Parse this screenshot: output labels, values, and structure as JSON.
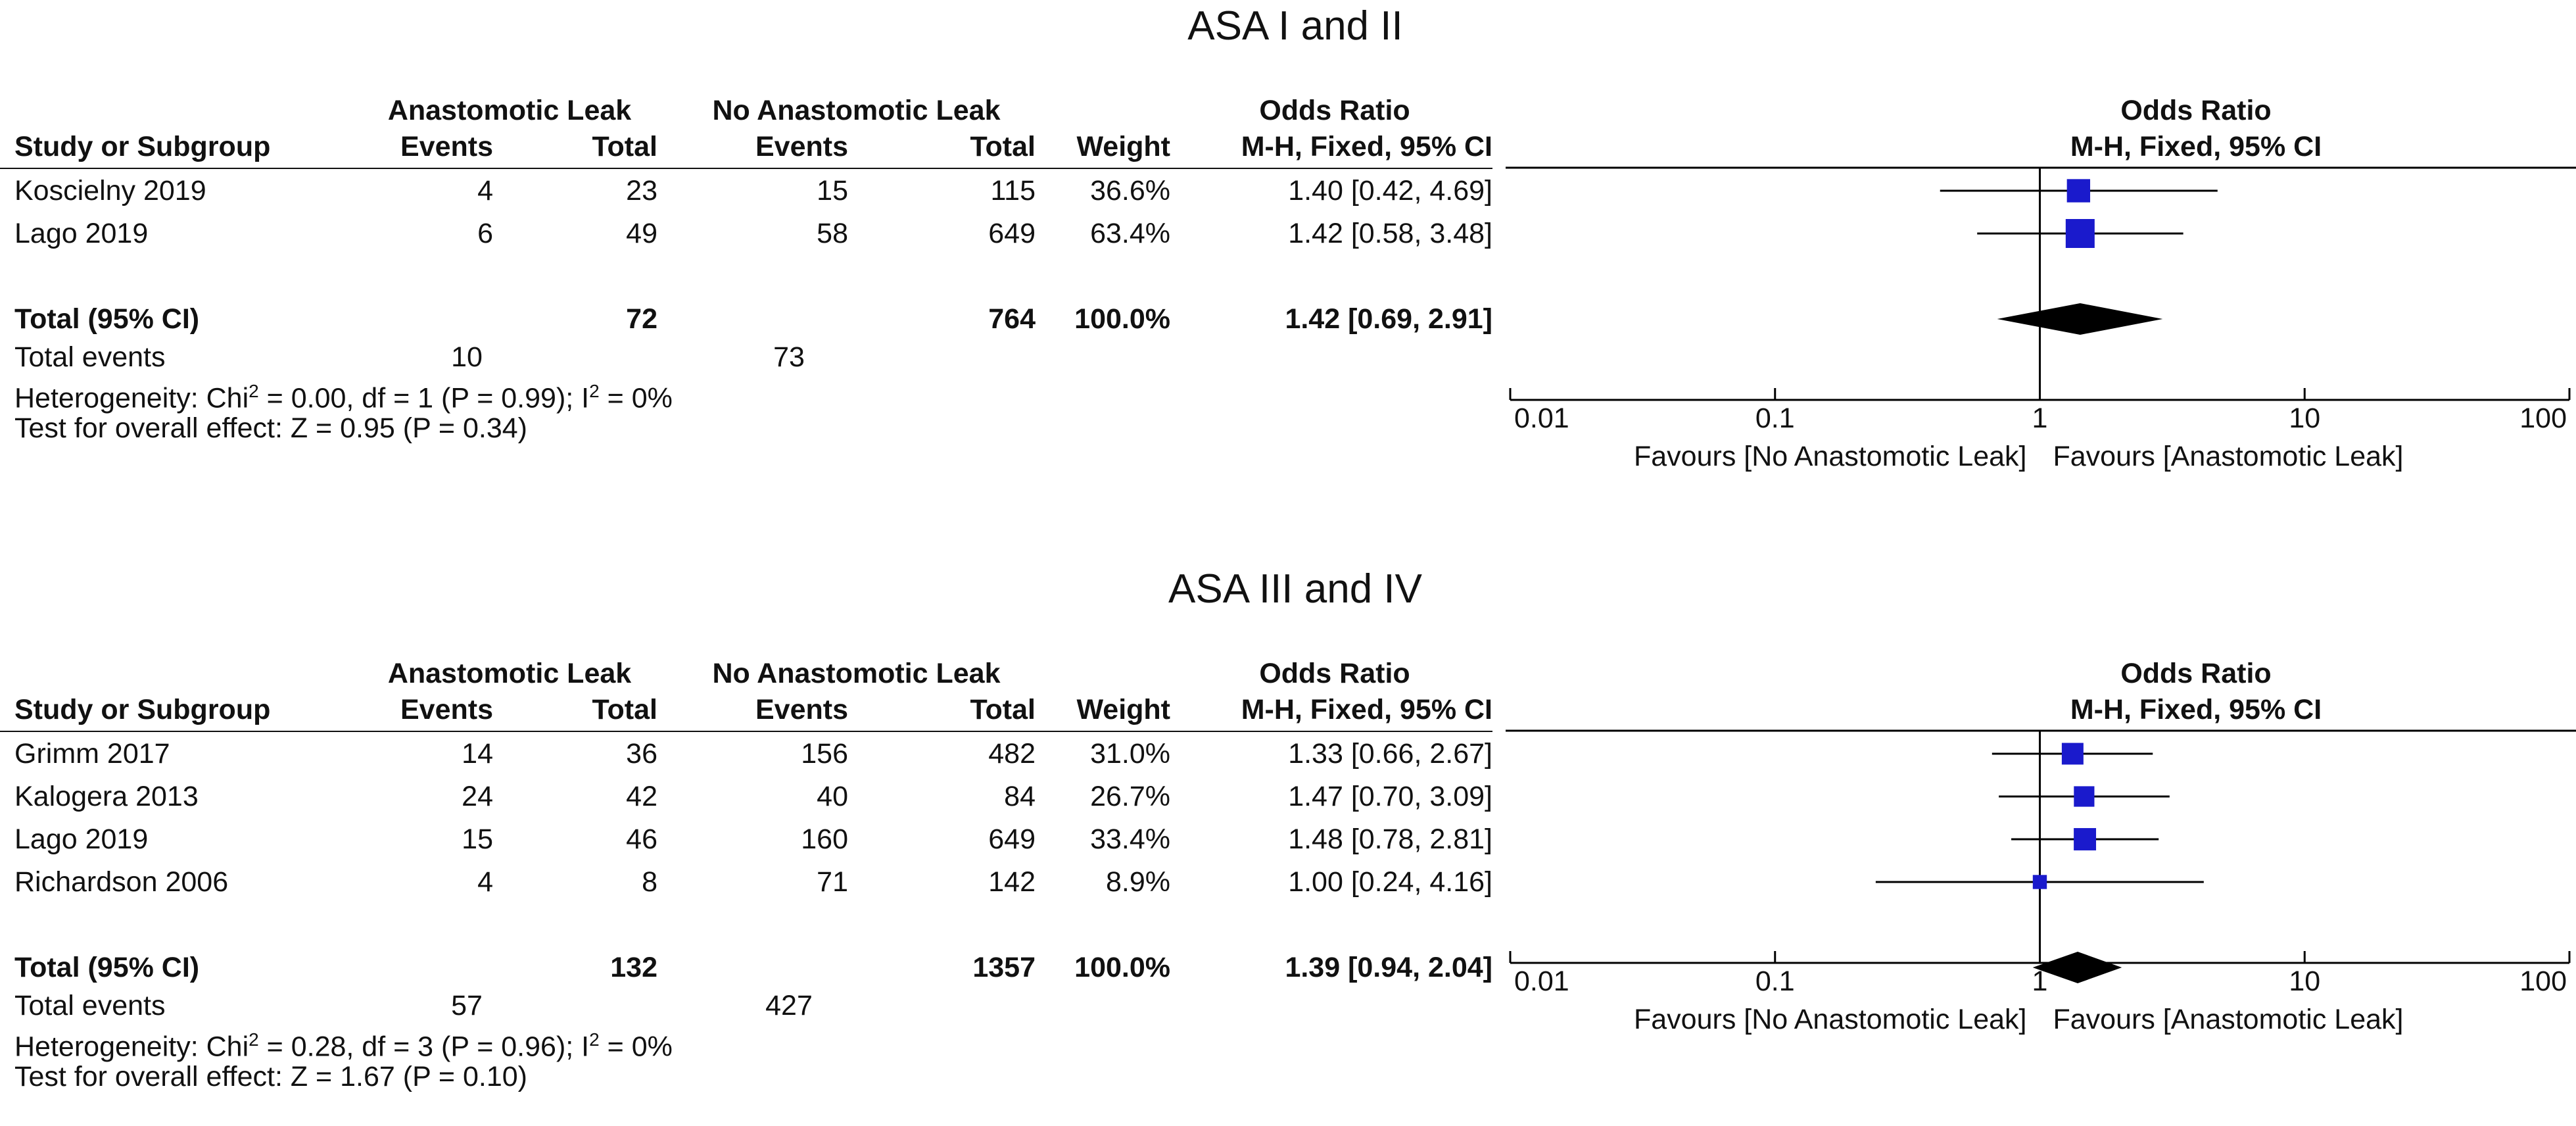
{
  "columns": {
    "group_ev": "Anastomotic Leak",
    "group_nev": "No Anastomotic Leak",
    "study": "Study or Subgroup",
    "events": "Events",
    "total": "Total",
    "weight": "Weight",
    "or_top": "Odds Ratio",
    "or_sub": "M-H, Fixed, 95% CI"
  },
  "plot_header": {
    "top": "Odds Ratio",
    "sub": "M-H, Fixed, 95% CI"
  },
  "axis": {
    "ticks": [
      "0.01",
      "0.1",
      "1",
      "10",
      "100"
    ],
    "favours_left": "Favours [No Anastomotic Leak]",
    "favours_right": "Favours [Anastomotic Leak]"
  },
  "chart_data": [
    {
      "type": "forest",
      "title": "ASA I and II",
      "xscale": "log",
      "xlim": [
        0.01,
        100
      ],
      "studies": [
        {
          "name": "Koscielny 2019",
          "ev1": "4",
          "tot1": "23",
          "ev2": "15",
          "tot2": "115",
          "weight": "36.6%",
          "or_text": "1.40 [0.42, 4.69]",
          "or": 1.4,
          "lo": 0.42,
          "hi": 4.69,
          "w": 36.6
        },
        {
          "name": "Lago 2019",
          "ev1": "6",
          "tot1": "49",
          "ev2": "58",
          "tot2": "649",
          "weight": "63.4%",
          "or_text": "1.42 [0.58, 3.48]",
          "or": 1.42,
          "lo": 0.58,
          "hi": 3.48,
          "w": 63.4
        }
      ],
      "total": {
        "label": "Total (95% CI)",
        "tot1": "72",
        "tot2": "764",
        "weight": "100.0%",
        "or_text": "1.42 [0.69, 2.91]",
        "or": 1.42,
        "lo": 0.69,
        "hi": 2.91
      },
      "total_events": {
        "label": "Total events",
        "ev1": "10",
        "ev2": "73"
      },
      "heterogeneity": {
        "prefix": "Heterogeneity: Chi",
        "mid": " = 0.00, df = 1 (P = 0.99); I",
        "suffix": " = 0%"
      },
      "overall": "Test for overall effect: Z = 0.95 (P = 0.34)"
    },
    {
      "type": "forest",
      "title": "ASA III and IV",
      "xscale": "log",
      "xlim": [
        0.01,
        100
      ],
      "studies": [
        {
          "name": "Grimm 2017",
          "ev1": "14",
          "tot1": "36",
          "ev2": "156",
          "tot2": "482",
          "weight": "31.0%",
          "or_text": "1.33 [0.66, 2.67]",
          "or": 1.33,
          "lo": 0.66,
          "hi": 2.67,
          "w": 31.0
        },
        {
          "name": "Kalogera 2013",
          "ev1": "24",
          "tot1": "42",
          "ev2": "40",
          "tot2": "84",
          "weight": "26.7%",
          "or_text": "1.47 [0.70, 3.09]",
          "or": 1.47,
          "lo": 0.7,
          "hi": 3.09,
          "w": 26.7
        },
        {
          "name": "Lago 2019",
          "ev1": "15",
          "tot1": "46",
          "ev2": "160",
          "tot2": "649",
          "weight": "33.4%",
          "or_text": "1.48 [0.78, 2.81]",
          "or": 1.48,
          "lo": 0.78,
          "hi": 2.81,
          "w": 33.4
        },
        {
          "name": "Richardson 2006",
          "ev1": "4",
          "tot1": "8",
          "ev2": "71",
          "tot2": "142",
          "weight": "8.9%",
          "or_text": "1.00 [0.24, 4.16]",
          "or": 1.0,
          "lo": 0.24,
          "hi": 4.16,
          "w": 8.9
        }
      ],
      "total": {
        "label": "Total (95% CI)",
        "tot1": "132",
        "tot2": "1357",
        "weight": "100.0%",
        "or_text": "1.39 [0.94, 2.04]",
        "or": 1.39,
        "lo": 0.94,
        "hi": 2.04
      },
      "total_events": {
        "label": "Total events",
        "ev1": "57",
        "ev2": "427"
      },
      "heterogeneity": {
        "prefix": "Heterogeneity: Chi",
        "mid": " = 0.28, df = 3 (P = 0.96); I",
        "suffix": " = 0%"
      },
      "overall": "Test for overall effect: Z = 1.67 (P = 0.10)"
    }
  ],
  "colors": {
    "study_marker": "#1a1acc",
    "diamond": "#000000",
    "line": "#000000"
  }
}
